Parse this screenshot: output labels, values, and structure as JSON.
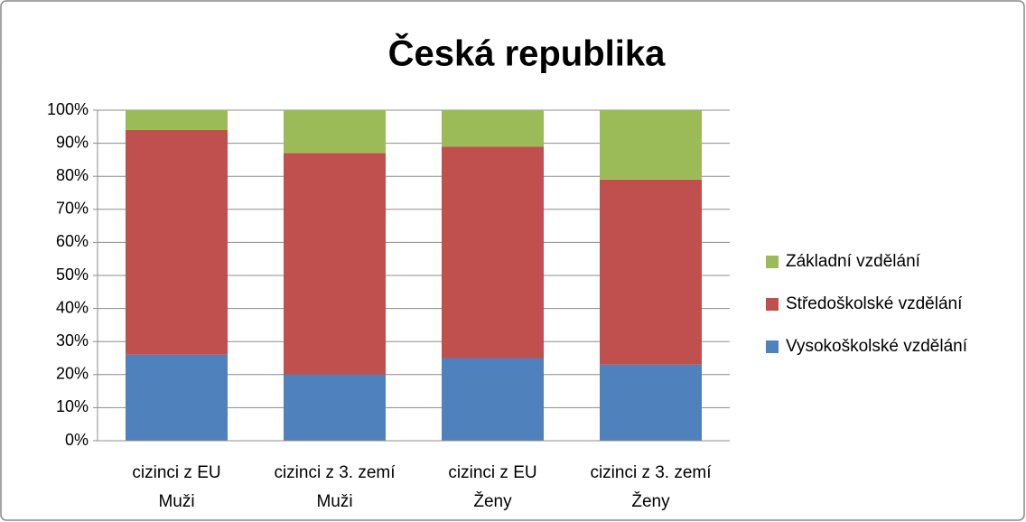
{
  "chart_data": {
    "type": "stacked-bar",
    "title": "Česká republika",
    "categories": [
      [
        "cizinci z EU",
        "Muži"
      ],
      [
        "cizinci z 3. zemí",
        "Muži"
      ],
      [
        "cizinci z EU",
        "Ženy"
      ],
      [
        "cizinci z 3. zemí",
        "Ženy"
      ]
    ],
    "series": [
      {
        "name": "Vysokoškolské vzdělání",
        "color": "#4f81bd",
        "values": [
          26,
          20,
          25,
          23
        ]
      },
      {
        "name": "Středoškolské vzdělání",
        "color": "#c0504d",
        "values": [
          68,
          67,
          64,
          56
        ]
      },
      {
        "name": "Základní vzdělání",
        "color": "#9bbb59",
        "values": [
          6,
          13,
          11,
          21
        ]
      }
    ],
    "ylim": [
      0,
      100
    ],
    "yticks": [
      {
        "value": 0,
        "label": "0%"
      },
      {
        "value": 10,
        "label": "10%"
      },
      {
        "value": 20,
        "label": "20%"
      },
      {
        "value": 30,
        "label": "30%"
      },
      {
        "value": 40,
        "label": "40%"
      },
      {
        "value": 50,
        "label": "50%"
      },
      {
        "value": 60,
        "label": "60%"
      },
      {
        "value": 70,
        "label": "70%"
      },
      {
        "value": 80,
        "label": "80%"
      },
      {
        "value": 90,
        "label": "90%"
      },
      {
        "value": 100,
        "label": "100%"
      }
    ],
    "grid": true,
    "legend": "right"
  }
}
